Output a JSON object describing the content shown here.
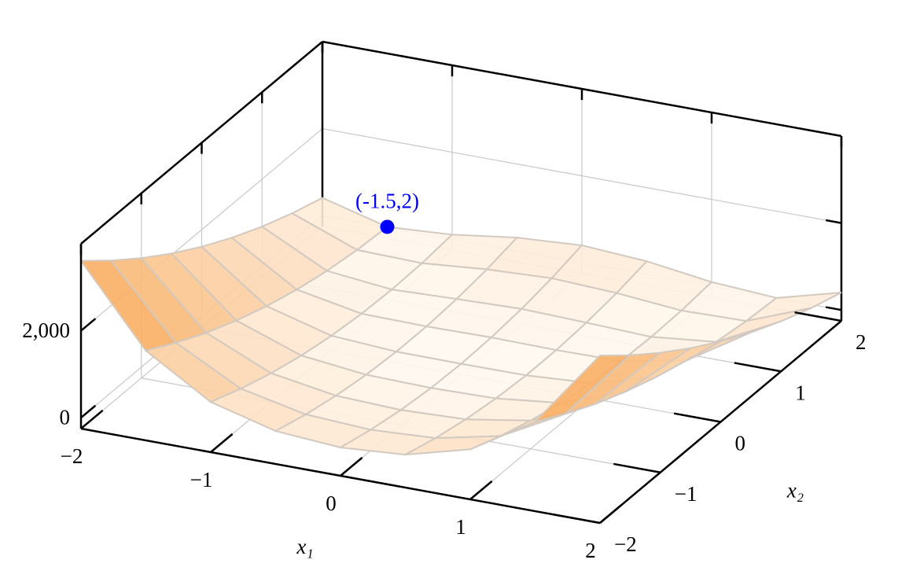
{
  "chart_data": {
    "type": "surface",
    "xlabel": "x₁",
    "ylabel": "x₂",
    "x": [
      -2,
      -1.5,
      -1,
      -0.5,
      0,
      0.5,
      1,
      1.5,
      2
    ],
    "y": [
      -2,
      -1.5,
      -1,
      -0.5,
      0,
      0.5,
      1,
      1.5,
      2
    ],
    "z": [
      [
        3609,
        1812.5,
        904,
        508.5,
        401,
        506.5,
        900,
        1806.5,
        3601
      ],
      [
        3034,
        1412.5,
        629,
        308.5,
        226,
        306.5,
        625,
        1406.5,
        3026
      ],
      [
        2509,
        1062.5,
        404,
        158.5,
        101,
        156.5,
        400,
        1056.5,
        2501
      ],
      [
        2034,
        762.5,
        229,
        58.5,
        26,
        56.5,
        225,
        756.5,
        2026
      ],
      [
        1609,
        512.5,
        104,
        8.5,
        1,
        6.5,
        100,
        506.5,
        1601
      ],
      [
        1234,
        312.5,
        29,
        8.5,
        26,
        6.5,
        25,
        306.5,
        1226
      ],
      [
        909,
        162.5,
        4,
        58.5,
        101,
        56.5,
        0,
        156.5,
        901
      ],
      [
        634,
        62.5,
        29,
        158.5,
        226,
        156.5,
        25,
        56.5,
        626
      ],
      [
        409,
        12.5,
        104,
        308.5,
        401,
        306.5,
        100,
        6.5,
        401
      ]
    ],
    "xlim": [
      -2,
      2
    ],
    "ylim": [
      -2,
      2
    ],
    "zlim": [
      -250,
      4000
    ],
    "xticks": [
      {
        "value": -2,
        "label": "−2"
      },
      {
        "value": -1,
        "label": "−1"
      },
      0,
      1,
      2
    ],
    "yticks": [
      {
        "value": -2,
        "label": "−2"
      },
      {
        "value": -1,
        "label": "−1"
      },
      0,
      1,
      2
    ],
    "zticks": [
      0,
      {
        "value": 2000,
        "label": "2,000"
      }
    ],
    "colormap": [
      "#fff9f1",
      "#f79433"
    ],
    "grid": true,
    "annotation": {
      "x": -1.5,
      "y": 2,
      "z": 12.5,
      "text": "(-1.5,2)",
      "color": "#0000ff"
    }
  }
}
